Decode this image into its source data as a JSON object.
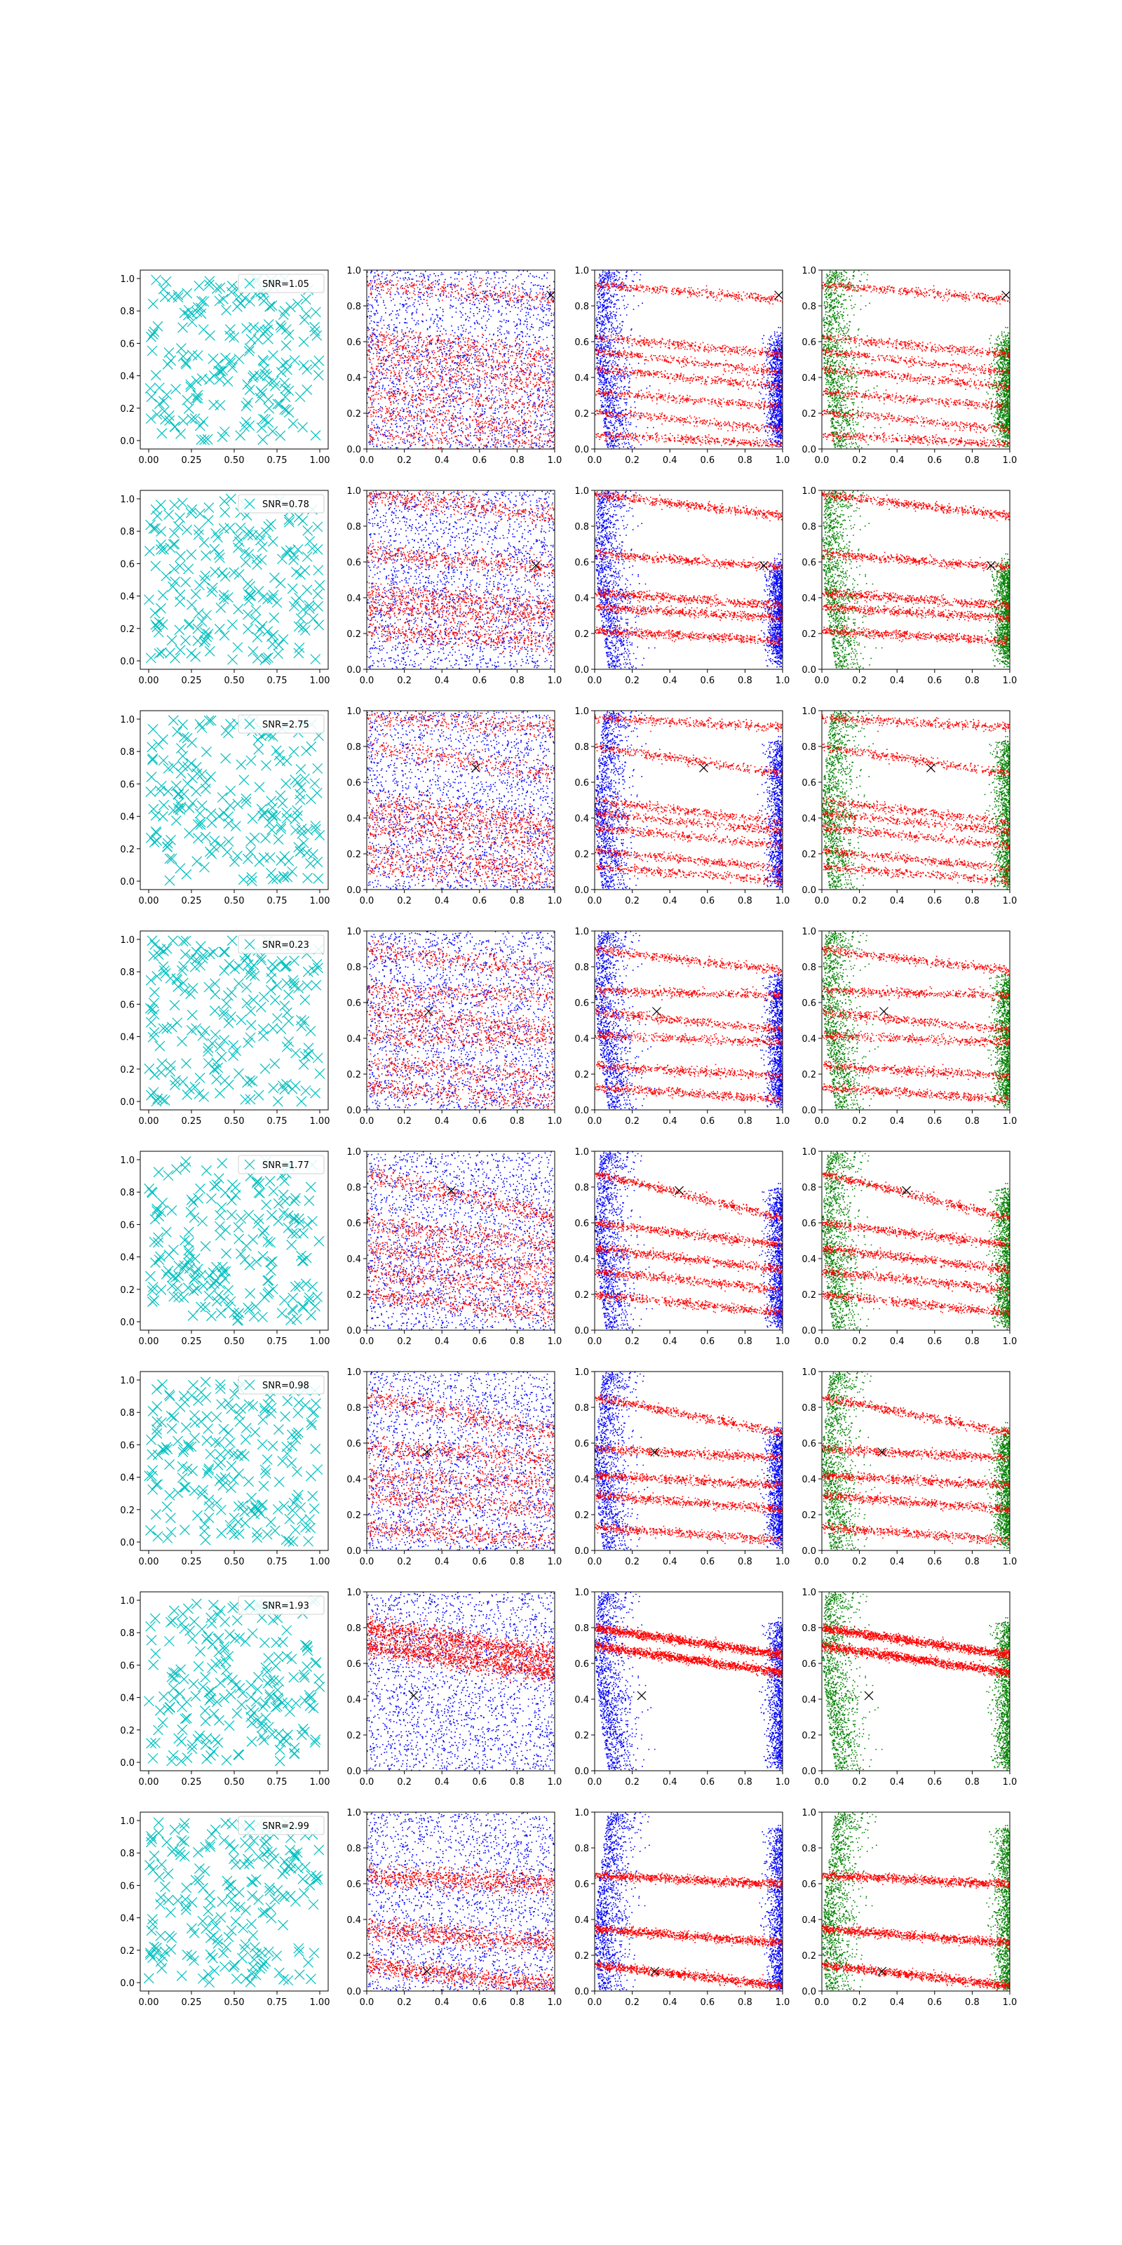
{
  "chart_data": {
    "type": "scatter",
    "grid": false,
    "x_ticks_small": [
      "0.00",
      "0.25",
      "0.50",
      "0.75",
      "1.00"
    ],
    "x_ticks": [
      "0.0",
      "0.2",
      "0.4",
      "0.6",
      "0.8",
      "1.0"
    ],
    "y_ticks": [
      "0.0",
      "0.2",
      "0.4",
      "0.6",
      "0.8",
      "1.0"
    ],
    "xlim": [
      0,
      1
    ],
    "ylim": [
      0,
      1
    ],
    "legend_placement": "top-right",
    "colors": {
      "noise": "#00bfbf",
      "red": "#ff0000",
      "blue": "#0000ff",
      "green": "#008000",
      "marker": "#000000"
    },
    "rows": [
      {
        "snr_label": "SNR=1.05",
        "target": [
          0.98,
          0.86
        ],
        "lines": [
          [
            0.92,
            -0.08
          ],
          [
            0.63,
            -0.1
          ],
          [
            0.55,
            -0.12
          ],
          [
            0.45,
            -0.1
          ],
          [
            0.32,
            -0.08
          ],
          [
            0.21,
            -0.1
          ],
          [
            0.08,
            -0.05
          ]
        ],
        "blue_edge": [
          0.55,
          0.65
        ]
      },
      {
        "snr_label": "SNR=0.78",
        "target": [
          0.9,
          0.58
        ],
        "lines": [
          [
            0.98,
            -0.12
          ],
          [
            0.65,
            -0.08
          ],
          [
            0.43,
            -0.07
          ],
          [
            0.35,
            -0.06
          ],
          [
            0.22,
            -0.06
          ]
        ],
        "blue_edge": [
          0.5,
          0.7
        ]
      },
      {
        "snr_label": "SNR=2.75",
        "target": [
          0.58,
          0.68
        ],
        "lines": [
          [
            0.96,
            -0.05
          ],
          [
            0.8,
            -0.15
          ],
          [
            0.5,
            -0.12
          ],
          [
            0.43,
            -0.1
          ],
          [
            0.35,
            -0.1
          ],
          [
            0.22,
            -0.1
          ],
          [
            0.13,
            -0.08
          ]
        ],
        "blue_edge": [
          0.8,
          0.45
        ]
      },
      {
        "snr_label": "SNR=0.23",
        "target": [
          0.33,
          0.55
        ],
        "lines": [
          [
            0.9,
            -0.12
          ],
          [
            0.67,
            -0.03
          ],
          [
            0.55,
            -0.1
          ],
          [
            0.42,
            -0.04
          ],
          [
            0.25,
            -0.06
          ],
          [
            0.13,
            -0.07
          ]
        ],
        "blue_edge": [
          0.7,
          0.7
        ]
      },
      {
        "snr_label": "SNR=1.77",
        "target": [
          0.45,
          0.78
        ],
        "lines": [
          [
            0.88,
            -0.25
          ],
          [
            0.6,
            -0.12
          ],
          [
            0.46,
            -0.12
          ],
          [
            0.33,
            -0.1
          ],
          [
            0.2,
            -0.1
          ]
        ],
        "blue_edge": [
          0.75,
          0.6
        ]
      },
      {
        "snr_label": "SNR=0.98",
        "target": [
          0.32,
          0.55
        ],
        "lines": [
          [
            0.86,
            -0.2
          ],
          [
            0.57,
            -0.05
          ],
          [
            0.31,
            -0.08
          ],
          [
            0.13,
            -0.07
          ],
          [
            0.42,
            -0.05
          ]
        ],
        "blue_edge": [
          0.6,
          0.5
        ]
      },
      {
        "snr_label": "SNR=1.93",
        "target": [
          0.25,
          0.42
        ],
        "lines": [
          [
            0.7,
            -0.15
          ],
          [
            0.8,
            -0.15
          ]
        ],
        "blue_edge": [
          0.8,
          0.7
        ]
      },
      {
        "snr_label": "SNR=2.99",
        "target": [
          0.32,
          0.11
        ],
        "lines": [
          [
            0.15,
            -0.12
          ],
          [
            0.35,
            -0.08
          ],
          [
            0.65,
            -0.05
          ]
        ],
        "blue_edge": [
          0.9,
          0.3
        ]
      }
    ]
  }
}
